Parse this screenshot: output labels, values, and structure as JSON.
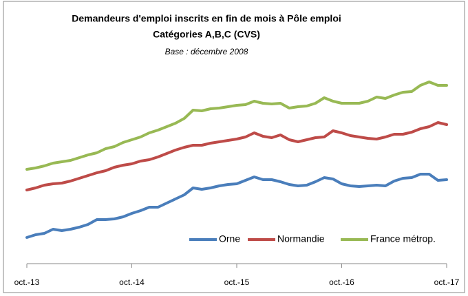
{
  "chart_data": {
    "type": "line",
    "title": [
      "Demandeurs d'emploi inscrits  en fin de mois à Pôle emploi",
      "Catégories A,B,C (CVS)"
    ],
    "subtitle": "Base : décembre 2008",
    "categories": [
      "oct.-13",
      null,
      null,
      null,
      null,
      null,
      null,
      null,
      null,
      null,
      null,
      null,
      "oct.-14",
      null,
      null,
      null,
      null,
      null,
      null,
      null,
      null,
      null,
      null,
      null,
      "oct.-15",
      null,
      null,
      null,
      null,
      null,
      null,
      null,
      null,
      null,
      null,
      null,
      "oct.-16",
      null,
      null,
      null,
      null,
      null,
      null,
      null,
      null,
      null,
      null,
      null,
      "oct.-17"
    ],
    "ylim": [
      100,
      175
    ],
    "grid": false,
    "legend": "bottom-right",
    "series": [
      {
        "name": "Orne",
        "color": "#4a7ebb",
        "label_color": "#000000",
        "values": [
          107.6,
          108.4,
          108.8,
          110.0,
          109.6,
          110.0,
          110.6,
          111.4,
          112.8,
          112.8,
          113.0,
          113.6,
          114.6,
          115.4,
          116.4,
          116.4,
          117.6,
          118.8,
          120.0,
          122.0,
          121.6,
          122.0,
          122.6,
          123.0,
          123.2,
          124.2,
          125.2,
          124.4,
          124.4,
          123.8,
          123.0,
          122.6,
          122.8,
          123.8,
          125.0,
          124.6,
          123.2,
          122.6,
          122.4,
          122.6,
          122.8,
          122.6,
          124.0,
          124.8,
          125.0,
          126.0,
          126.0,
          124.2,
          124.4
        ]
      },
      {
        "name": "Normandie",
        "color": "#be4b48",
        "label_color": "#ff0000",
        "values": [
          121.4,
          122.0,
          122.8,
          123.2,
          123.4,
          124.0,
          124.8,
          125.6,
          126.4,
          127.0,
          128.0,
          128.6,
          129.0,
          129.8,
          130.2,
          131.0,
          132.0,
          133.0,
          133.8,
          134.4,
          134.4,
          135.0,
          135.4,
          135.8,
          136.2,
          136.8,
          138.0,
          137.0,
          136.6,
          137.4,
          136.0,
          135.4,
          136.0,
          136.6,
          136.8,
          138.6,
          138.0,
          137.2,
          136.8,
          136.4,
          136.2,
          136.8,
          137.6,
          137.6,
          138.2,
          139.2,
          139.8,
          141.0,
          140.4
        ]
      },
      {
        "name": "France métrop.",
        "color": "#98b954",
        "label_color": "#000000",
        "values": [
          127.4,
          127.8,
          128.4,
          129.2,
          129.6,
          130.0,
          130.8,
          131.6,
          132.2,
          133.4,
          134.0,
          135.2,
          136.0,
          136.8,
          138.0,
          138.8,
          139.8,
          140.8,
          142.2,
          144.6,
          144.4,
          145.0,
          145.2,
          145.6,
          146.0,
          146.2,
          147.2,
          146.6,
          146.4,
          146.6,
          145.2,
          145.6,
          145.8,
          146.6,
          148.2,
          147.2,
          146.6,
          146.6,
          146.6,
          147.2,
          148.4,
          148.0,
          149.0,
          149.8,
          150.0,
          151.8,
          152.8,
          151.8,
          151.8
        ]
      }
    ]
  }
}
